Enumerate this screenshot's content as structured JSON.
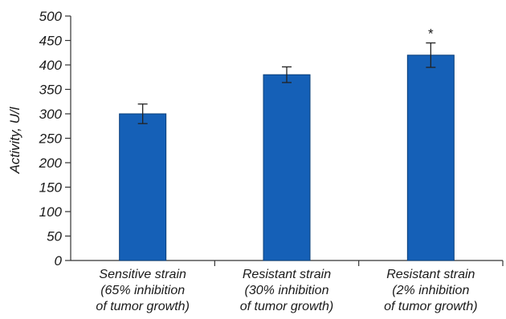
{
  "chart_data": {
    "type": "bar",
    "title": "",
    "xlabel": "",
    "ylabel": "Activity, U/l",
    "ylim": [
      0,
      500
    ],
    "yticks": [
      0,
      50,
      100,
      150,
      200,
      250,
      300,
      350,
      400,
      450,
      500
    ],
    "grid": false,
    "categories": [
      [
        "Sensitive strain",
        "(65% inhibition",
        "of tumor growth)"
      ],
      [
        "Resistant strain",
        "(30% inhibition",
        "of tumor growth)"
      ],
      [
        "Resistant strain",
        "(2% inhibition",
        "of tumor growth)"
      ]
    ],
    "values": [
      300,
      380,
      420
    ],
    "errors": [
      20,
      16,
      25
    ],
    "annotations": [
      "",
      "",
      "*"
    ],
    "bar_color": "#1560b7"
  }
}
